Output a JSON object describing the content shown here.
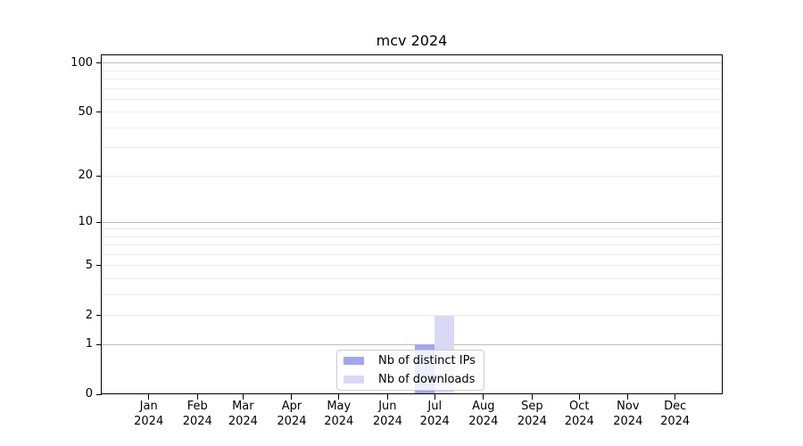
{
  "chart_data": {
    "type": "bar",
    "title": "mcv 2024",
    "x": {
      "categories": [
        {
          "month": "Jan",
          "year": "2024"
        },
        {
          "month": "Feb",
          "year": "2024"
        },
        {
          "month": "Mar",
          "year": "2024"
        },
        {
          "month": "Apr",
          "year": "2024"
        },
        {
          "month": "May",
          "year": "2024"
        },
        {
          "month": "Jun",
          "year": "2024"
        },
        {
          "month": "Jul",
          "year": "2024"
        },
        {
          "month": "Aug",
          "year": "2024"
        },
        {
          "month": "Sep",
          "year": "2024"
        },
        {
          "month": "Oct",
          "year": "2024"
        },
        {
          "month": "Nov",
          "year": "2024"
        },
        {
          "month": "Dec",
          "year": "2024"
        }
      ]
    },
    "y": {
      "scale": "log1p",
      "ticks": [
        0,
        1,
        2,
        5,
        10,
        20,
        50,
        100
      ],
      "major_gridlines": [
        1,
        10,
        100
      ],
      "minor_gridlines": [
        2,
        3,
        4,
        5,
        6,
        7,
        8,
        9,
        20,
        30,
        40,
        50,
        60,
        70,
        80,
        90
      ],
      "ymax": 113
    },
    "series": [
      {
        "name": "Nb of distinct IPs",
        "color": "#a5a5f0",
        "values": [
          0,
          0,
          0,
          0,
          0,
          0,
          1,
          0,
          0,
          0,
          0,
          0
        ]
      },
      {
        "name": "Nb of downloads",
        "color": "#d9d9f6",
        "values": [
          0,
          0,
          0,
          0,
          0,
          0,
          2,
          0,
          0,
          0,
          0,
          0
        ]
      }
    ],
    "legend_position": "lower center",
    "grid": "on",
    "colors": {
      "axis": "#000000",
      "major_grid": "#bfbfbf",
      "minor_grid": "#ebebeb",
      "background": "#ffffff"
    }
  }
}
